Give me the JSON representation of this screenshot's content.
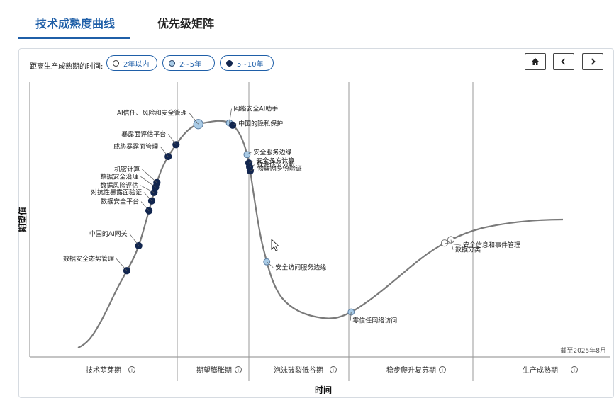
{
  "tabs": [
    {
      "label": "技术成熟度曲线",
      "active": true
    },
    {
      "label": "优先级矩阵",
      "active": false
    }
  ],
  "legend": {
    "label": "距离生产成熟期的时间:",
    "items": [
      {
        "label": "2年以内",
        "fill": "#ffffff",
        "stroke": "#333333"
      },
      {
        "label": "2~5年",
        "fill": "#a9cbe6",
        "stroke": "#1f3a60"
      },
      {
        "label": "5~10年",
        "fill": "#12264f",
        "stroke": "#12264f"
      }
    ]
  },
  "icons": {
    "home": "home-icon",
    "prev": "chevron-left-icon",
    "next": "chevron-right-icon"
  },
  "chart_data": {
    "type": "hype-cycle",
    "xlabel": "时间",
    "ylabel": "期望值",
    "note": "截至2025年8月",
    "phases": [
      "技术萌芽期",
      "期望膨胀期",
      "泡沫破裂低谷期",
      "稳步爬升复苏期",
      "生产成熟期"
    ],
    "colors": {
      "curve": "#7a7a7a",
      "dark": "#12264f",
      "light": "#a9cbe6",
      "white": "#ffffff"
    },
    "points": [
      {
        "label": "数据安全态势管理",
        "t": 0.117,
        "type": "5-10"
      },
      {
        "label": "中国的AI网关",
        "t": 0.152,
        "type": "5-10"
      },
      {
        "label": "数据安全平台",
        "t": 0.198,
        "type": "5-10"
      },
      {
        "label": "对抗性暴露面验证",
        "t": 0.211,
        "type": "5-10"
      },
      {
        "label": "数据风险评估",
        "t": 0.222,
        "type": "5-10"
      },
      {
        "label": "数据安全治理",
        "t": 0.229,
        "type": "5-10"
      },
      {
        "label": "机密计算",
        "t": 0.235,
        "type": "5-10"
      },
      {
        "label": "成胁暴露面管理",
        "t": 0.271,
        "type": "5-10"
      },
      {
        "label": "暴露面评估平台",
        "t": 0.289,
        "type": "5-10"
      },
      {
        "label": "AI信任、风险和安全管理",
        "t": 0.328,
        "type": "2-5"
      },
      {
        "label": "网络安全AI助手",
        "t": 0.368,
        "type": "2-5"
      },
      {
        "label": "中国的隐私保护",
        "t": 0.373,
        "type": "5-10"
      },
      {
        "label": "安全服务边缘",
        "t": 0.415,
        "type": "2-5"
      },
      {
        "label": "安全多方计算",
        "t": 0.426,
        "type": "5-10"
      },
      {
        "label": "软件成分分析",
        "t": 0.431,
        "type": "5-10"
      },
      {
        "label": "物联网身份验证",
        "t": 0.436,
        "type": "5-10"
      },
      {
        "label": "安全访问服务边缘",
        "t": 0.553,
        "type": "2-5"
      },
      {
        "label": "零信任网络访问",
        "t": 0.699,
        "type": "2-5"
      },
      {
        "label": "安全信息和事件管理",
        "t": 0.846,
        "type": "2yr"
      },
      {
        "label": "数据分类",
        "t": 0.855,
        "type": "2yr"
      }
    ]
  }
}
